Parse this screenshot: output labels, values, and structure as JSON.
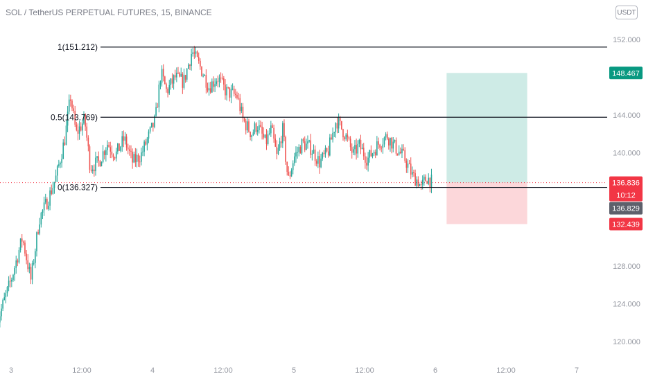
{
  "header": {
    "title": "SOL / TetherUS PERPETUAL FUTURES, 15, BINANCE",
    "currency": "USDT"
  },
  "chart_data": {
    "type": "candlestick",
    "title": "SOL / TetherUS PERPETUAL FUTURES, 15, BINANCE",
    "ylim": [
      118,
      154
    ],
    "y_ticks": [
      {
        "value": 120,
        "label": "120.000"
      },
      {
        "value": 124,
        "label": "124.000"
      },
      {
        "value": 128,
        "label": "128.000"
      },
      {
        "value": 140,
        "label": "140.000"
      },
      {
        "value": 144,
        "label": "144.000"
      },
      {
        "value": 152,
        "label": "152.000"
      }
    ],
    "x_ticks": [
      {
        "label": "3",
        "t": 0.1
      },
      {
        "label": "12:00",
        "t": 0.6
      },
      {
        "label": "4",
        "t": 1.1
      },
      {
        "label": "12:00",
        "t": 1.6
      },
      {
        "label": "5",
        "t": 2.1
      },
      {
        "label": "12:00",
        "t": 2.6
      },
      {
        "label": "6",
        "t": 3.1
      },
      {
        "label": "12:00",
        "t": 3.6
      },
      {
        "label": "7",
        "t": 4.1
      }
    ],
    "fib_levels": [
      {
        "label": "1(151.212)",
        "value": 151.212
      },
      {
        "label": "0.5(143.769)",
        "value": 143.769
      },
      {
        "label": "0(136.327)",
        "value": 136.327
      }
    ],
    "position": {
      "entry": 136.836,
      "target": 148.467,
      "stop": 132.439,
      "t_start": 3.18,
      "t_end": 3.75
    },
    "price_tags": [
      {
        "value": 148.467,
        "label": "148.467",
        "color": "#089981"
      },
      {
        "value": 136.836,
        "label": "136.836",
        "sublabel": "10:12",
        "color": "#f23645"
      },
      {
        "value": 136.829,
        "label": "136.829",
        "color": "#5d606b"
      },
      {
        "value": 132.439,
        "label": "132.439",
        "color": "#f23645"
      }
    ],
    "series_path": [
      [
        0.0,
        122.0
      ],
      [
        0.1,
        126.5
      ],
      [
        0.18,
        131.0
      ],
      [
        0.24,
        126.5
      ],
      [
        0.3,
        133.0
      ],
      [
        0.36,
        135.0
      ],
      [
        0.42,
        137.5
      ],
      [
        0.48,
        141.5
      ],
      [
        0.52,
        146.0
      ],
      [
        0.56,
        142.0
      ],
      [
        0.62,
        143.5
      ],
      [
        0.66,
        138.5
      ],
      [
        0.72,
        139.0
      ],
      [
        0.78,
        141.0
      ],
      [
        0.84,
        139.8
      ],
      [
        0.9,
        141.5
      ],
      [
        0.96,
        139.0
      ],
      [
        1.02,
        139.8
      ],
      [
        1.08,
        142.0
      ],
      [
        1.12,
        143.5
      ],
      [
        1.16,
        148.5
      ],
      [
        1.2,
        146.5
      ],
      [
        1.26,
        148.0
      ],
      [
        1.32,
        147.5
      ],
      [
        1.38,
        150.8
      ],
      [
        1.44,
        149.0
      ],
      [
        1.5,
        147.0
      ],
      [
        1.56,
        148.0
      ],
      [
        1.62,
        146.5
      ],
      [
        1.7,
        146.0
      ],
      [
        1.74,
        143.5
      ],
      [
        1.8,
        142.0
      ],
      [
        1.84,
        143.0
      ],
      [
        1.9,
        141.0
      ],
      [
        1.94,
        142.5
      ],
      [
        1.98,
        139.5
      ],
      [
        2.02,
        142.5
      ],
      [
        2.06,
        137.0
      ],
      [
        2.1,
        139.5
      ],
      [
        2.16,
        141.0
      ],
      [
        2.22,
        140.5
      ],
      [
        2.28,
        139.0
      ],
      [
        2.34,
        140.0
      ],
      [
        2.4,
        143.5
      ],
      [
        2.46,
        142.0
      ],
      [
        2.52,
        139.8
      ],
      [
        2.56,
        140.8
      ],
      [
        2.62,
        139.3
      ],
      [
        2.7,
        141.0
      ],
      [
        2.76,
        141.8
      ],
      [
        2.82,
        140.5
      ],
      [
        2.88,
        139.5
      ],
      [
        2.94,
        137.5
      ],
      [
        2.98,
        137.0
      ],
      [
        3.0,
        136.2
      ],
      [
        3.02,
        136.9
      ],
      [
        3.04,
        137.4
      ],
      [
        3.08,
        136.83
      ]
    ]
  }
}
